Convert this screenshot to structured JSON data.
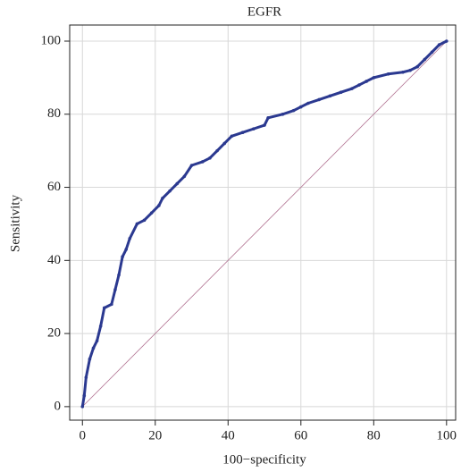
{
  "chart_data": {
    "type": "line",
    "title": "EGFR",
    "x_label": "100−specificity",
    "y_label": "Sensitivity",
    "x": [
      0,
      0.5,
      1,
      2,
      3,
      4,
      5,
      6,
      8,
      9,
      10,
      11,
      12,
      13,
      15,
      17,
      19,
      21,
      22,
      24,
      26,
      28,
      30,
      33,
      35,
      37,
      39,
      41,
      44,
      47,
      50,
      51,
      55,
      58,
      60,
      62,
      65,
      68,
      71,
      74,
      76,
      78,
      80,
      84,
      88,
      90,
      92,
      94,
      96,
      98,
      100
    ],
    "series": [
      {
        "name": "EGFR",
        "color": "#2b3990",
        "values": [
          0,
          3,
          8,
          13,
          16,
          18,
          22,
          27,
          28,
          32,
          36,
          41,
          43,
          46,
          50,
          51,
          53,
          55,
          57,
          59,
          61,
          63,
          66,
          67,
          68,
          70,
          72,
          74,
          75,
          76,
          77,
          79,
          80,
          81,
          82,
          83,
          84,
          85,
          86,
          87,
          88,
          89,
          90,
          91,
          91.5,
          92,
          93,
          95,
          97,
          99,
          100
        ]
      }
    ],
    "xlim": [
      -3.5,
      102.5
    ],
    "ylim": [
      -3.7,
      104.4
    ],
    "xticks": [
      0,
      20,
      40,
      60,
      80,
      100
    ],
    "yticks": [
      0,
      20,
      40,
      60,
      80,
      100
    ],
    "grid": true
  }
}
